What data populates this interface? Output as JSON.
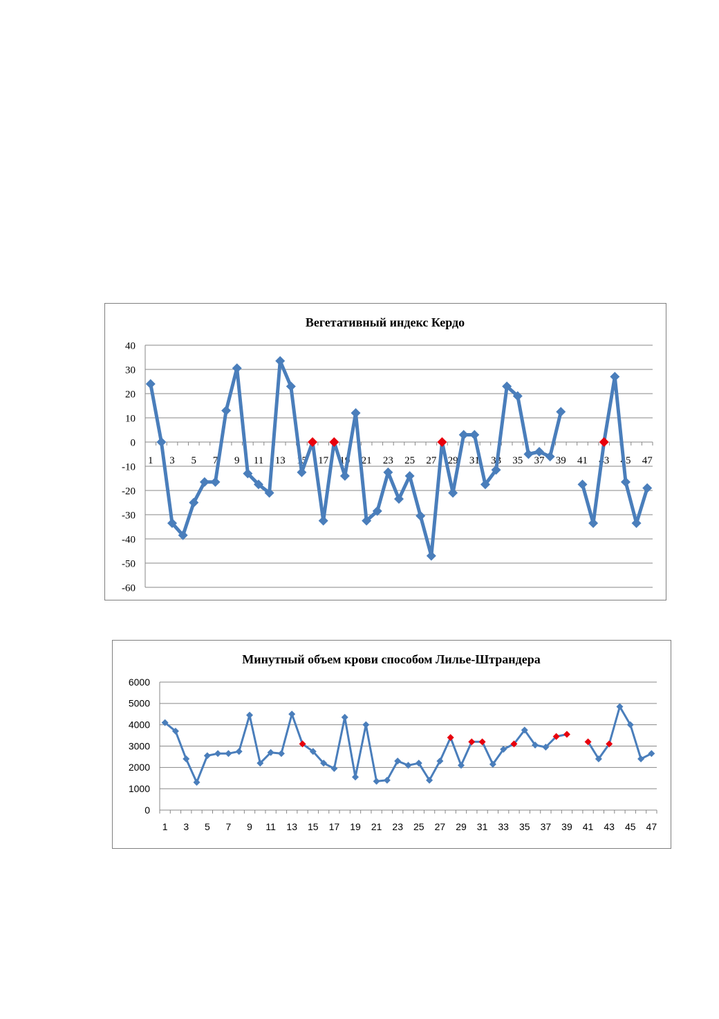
{
  "colors": {
    "series_line": "#4a7ebb",
    "series_marker": "#4a7ebb",
    "highlight_marker": "#e8000d",
    "gridline": "#878787",
    "axis": "#878787"
  },
  "chart_data": [
    {
      "type": "line",
      "title": "Вегетативный индекс Кердо",
      "xlabel": "",
      "ylabel": "",
      "ylim": [
        -60,
        40
      ],
      "y_ticks": [
        "40",
        "30",
        "20",
        "10",
        "0",
        "-10",
        "-20",
        "-30",
        "-40",
        "-50",
        "-60"
      ],
      "x_tick_labels": [
        "1",
        "3",
        "5",
        "7",
        "9",
        "11",
        "13",
        "15",
        "17",
        "19",
        "21",
        "23",
        "25",
        "27",
        "29",
        "31",
        "33",
        "35",
        "37",
        "39",
        "41",
        "43",
        "45",
        "47"
      ],
      "x": [
        1,
        2,
        3,
        4,
        5,
        6,
        7,
        8,
        9,
        10,
        11,
        12,
        13,
        14,
        15,
        16,
        17,
        18,
        19,
        20,
        21,
        22,
        23,
        24,
        25,
        26,
        27,
        28,
        29,
        30,
        31,
        32,
        33,
        34,
        35,
        36,
        37,
        38,
        39,
        40,
        41,
        42,
        43,
        44,
        45,
        46,
        47
      ],
      "values": [
        24,
        0,
        -33.5,
        -38.5,
        -25,
        -16.5,
        -16.5,
        13,
        30.5,
        -13,
        -17.5,
        -21,
        33.5,
        23,
        -12.5,
        0,
        -32.5,
        0,
        -14,
        12,
        -32.5,
        -28.5,
        -12.5,
        -23.5,
        -14,
        -30.5,
        -47,
        0,
        -21,
        3,
        3,
        -17.5,
        -11.5,
        23,
        19,
        -5,
        -4,
        -6,
        12.5,
        null,
        -17.5,
        -33.5,
        0,
        27,
        -16.5,
        -33.5,
        -19
      ],
      "highlighted_points": [
        16,
        18,
        28,
        43
      ],
      "grid": true,
      "legend": "none"
    },
    {
      "type": "line",
      "title": "Минутный объем крови способом Лилье-Штрандера",
      "xlabel": "",
      "ylabel": "",
      "ylim": [
        0,
        6000
      ],
      "y_ticks": [
        "6000",
        "5000",
        "4000",
        "3000",
        "2000",
        "1000",
        "0"
      ],
      "x_tick_labels": [
        "1",
        "3",
        "5",
        "7",
        "9",
        "11",
        "13",
        "15",
        "17",
        "19",
        "21",
        "23",
        "25",
        "27",
        "29",
        "31",
        "33",
        "35",
        "37",
        "39",
        "41",
        "43",
        "45",
        "47"
      ],
      "x": [
        1,
        2,
        3,
        4,
        5,
        6,
        7,
        8,
        9,
        10,
        11,
        12,
        13,
        14,
        15,
        16,
        17,
        18,
        19,
        20,
        21,
        22,
        23,
        24,
        25,
        26,
        27,
        28,
        29,
        30,
        31,
        32,
        33,
        34,
        35,
        36,
        37,
        38,
        39,
        40,
        41,
        42,
        43,
        44,
        45,
        46,
        47
      ],
      "values": [
        4100,
        3700,
        2400,
        1300,
        2550,
        2650,
        2650,
        2750,
        4450,
        2200,
        2700,
        2650,
        4500,
        3100,
        2750,
        2200,
        1950,
        4350,
        1550,
        4000,
        1350,
        1400,
        2300,
        2100,
        2200,
        1400,
        2300,
        3400,
        2100,
        3200,
        3200,
        2150,
        2850,
        3100,
        3750,
        3050,
        2950,
        3450,
        3550,
        null,
        3200,
        2400,
        3100,
        4850,
        4000,
        2400,
        2650
      ],
      "highlighted_points": [
        14,
        28,
        30,
        31,
        34,
        38,
        39,
        41,
        43
      ],
      "grid": true,
      "legend": "none"
    }
  ]
}
